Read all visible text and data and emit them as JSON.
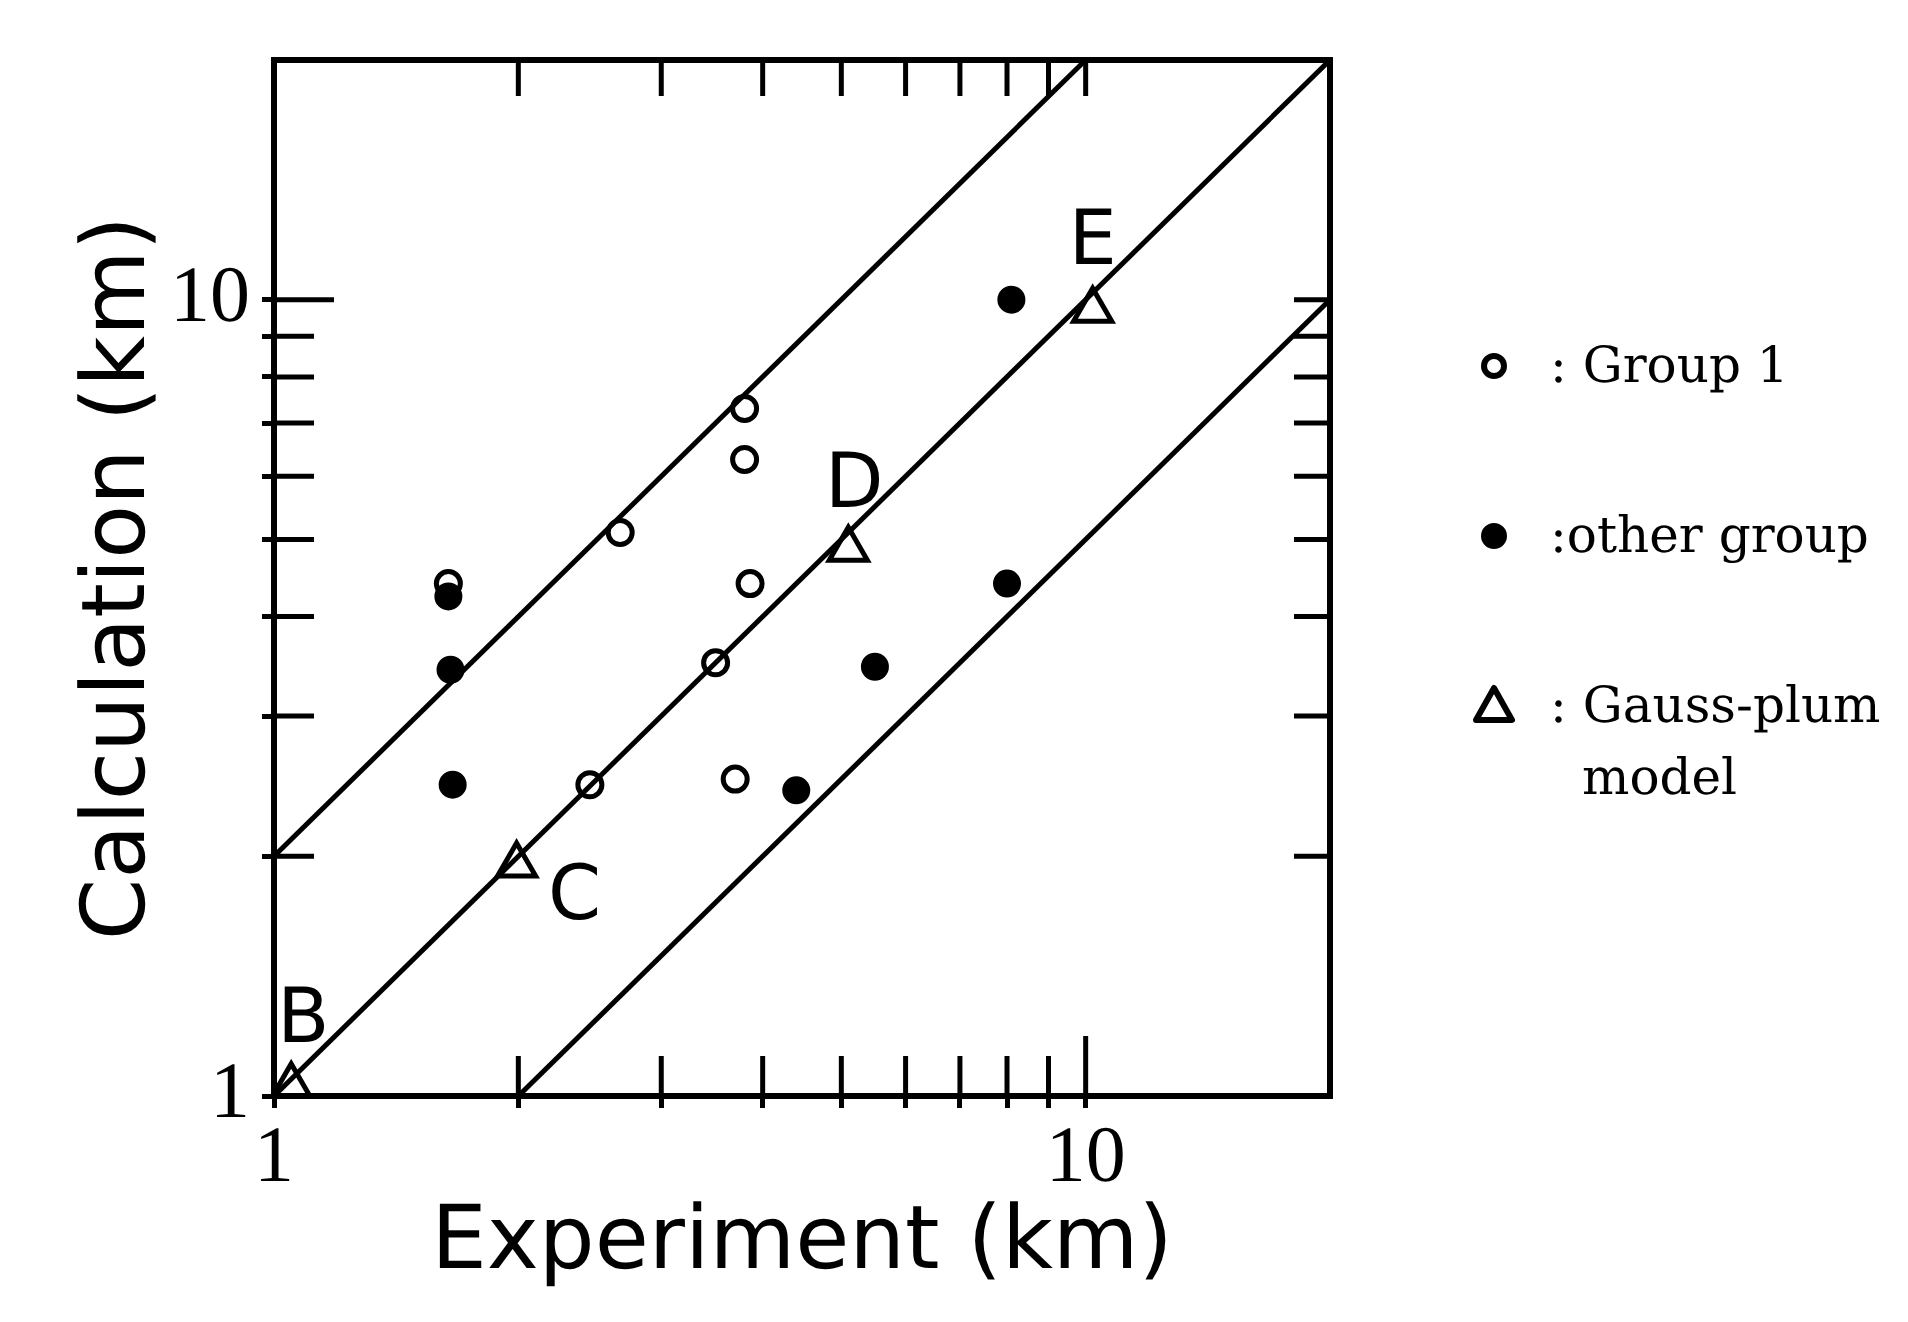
{
  "chart_data": {
    "type": "scatter",
    "xlabel": "Experiment (km)",
    "ylabel": "Calculation (km)",
    "xlim": [
      1,
      20
    ],
    "ylim": [
      1,
      20
    ],
    "xticks": [
      1,
      {
        "value": 2,
        "label": null
      },
      {
        "value": 3,
        "label": null
      },
      {
        "value": 4,
        "label": null
      },
      {
        "value": 5,
        "label": null
      },
      {
        "value": 6,
        "label": null
      },
      {
        "value": 7,
        "label": null
      },
      {
        "value": 8,
        "label": null
      },
      {
        "value": 9,
        "label": null
      },
      10
    ],
    "yticks": [
      1,
      {
        "value": 2,
        "label": null
      },
      {
        "value": 3,
        "label": null
      },
      {
        "value": 4,
        "label": null
      },
      {
        "value": 5,
        "label": null
      },
      {
        "value": 6,
        "label": null
      },
      {
        "value": 7,
        "label": null
      },
      {
        "value": 8,
        "label": null
      },
      {
        "value": 9,
        "label": null
      },
      10
    ],
    "log": "xy",
    "legend": "right",
    "series": [
      {
        "name": ": Group 1",
        "type": "scatter",
        "marker": "circle",
        "color": "#000000",
        "x": [
          1.64,
          2.67,
          3.8,
          3.8,
          3.86,
          3.5,
          2.45,
          3.7
        ],
        "values": [
          4.4,
          5.1,
          7.3,
          6.3,
          4.4,
          3.5,
          2.46,
          2.5
        ]
      },
      {
        "name": ":other group",
        "type": "scatter",
        "marker": "circle",
        "color": "#000000",
        "x": [
          1.64,
          1.65,
          1.66,
          8.1,
          8.0,
          5.5,
          4.4
        ],
        "values": [
          4.24,
          3.43,
          2.46,
          10,
          4.4,
          3.46,
          2.42
        ]
      },
      {
        "name": ": Gauss-plum model",
        "type": "scatter",
        "marker": "triangle",
        "color": "#000000",
        "x": [
          1.05,
          1.99,
          5.1,
          10.2
        ],
        "values": [
          1.03,
          1.95,
          4.86,
          9.7
        ]
      },
      {
        "type": "line",
        "color": "#000000",
        "x": [
          1,
          10
        ],
        "values": [
          2,
          20
        ]
      },
      {
        "type": "line",
        "color": "#000000",
        "x": [
          1,
          20
        ],
        "values": [
          1,
          20
        ]
      },
      {
        "type": "line",
        "color": "#000000",
        "x": [
          2,
          20
        ],
        "values": [
          1,
          10
        ]
      }
    ],
    "annotations": [
      {
        "text": "B",
        "x": 1.05,
        "y": 1.03
      },
      {
        "text": "C",
        "x": 1.99,
        "y": 1.95
      },
      {
        "text": "D",
        "x": 5.1,
        "y": 4.86
      },
      {
        "text": "E",
        "x": 10.2,
        "y": 9.7
      }
    ]
  }
}
